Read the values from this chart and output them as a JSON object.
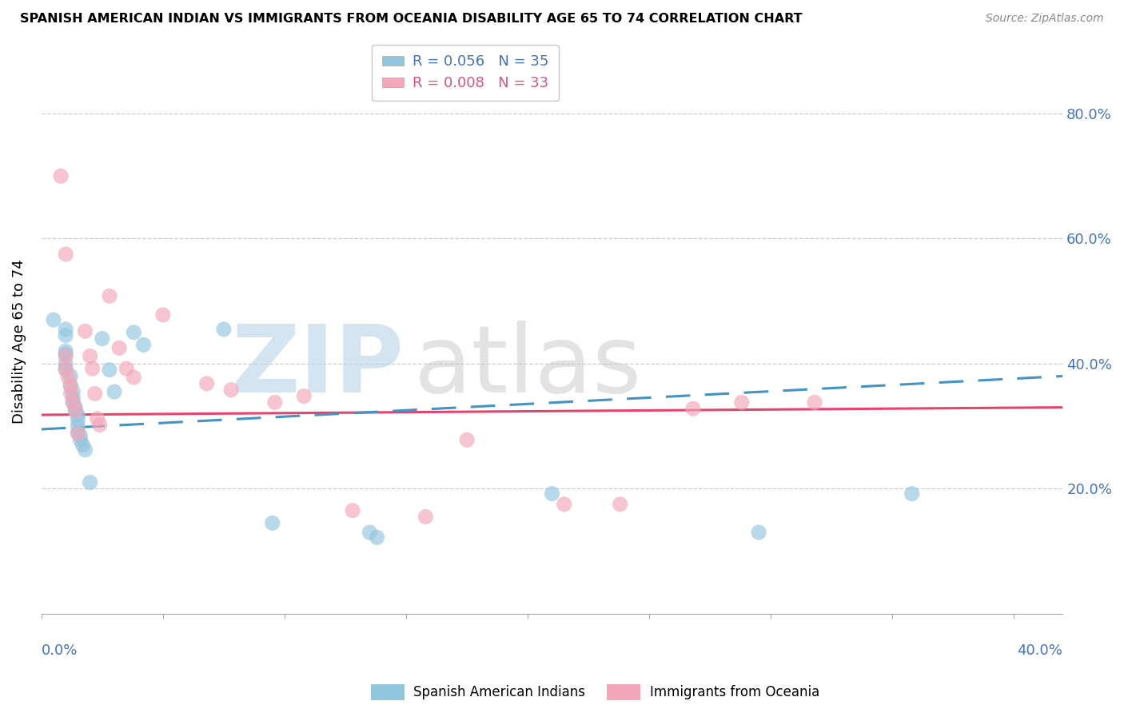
{
  "title": "SPANISH AMERICAN INDIAN VS IMMIGRANTS FROM OCEANIA DISABILITY AGE 65 TO 74 CORRELATION CHART",
  "source": "Source: ZipAtlas.com",
  "ylabel": "Disability Age 65 to 74",
  "ylim": [
    0.0,
    0.87
  ],
  "xlim": [
    0.0,
    0.42
  ],
  "legend1_R": "0.056",
  "legend1_N": "35",
  "legend2_R": "0.008",
  "legend2_N": "33",
  "color_blue": "#92c5de",
  "color_pink": "#f4a7b9",
  "color_blue_line": "#4393c3",
  "color_pink_line": "#e8436e",
  "scatter_blue": [
    [
      0.005,
      0.47
    ],
    [
      0.01,
      0.455
    ],
    [
      0.01,
      0.445
    ],
    [
      0.01,
      0.42
    ],
    [
      0.01,
      0.415
    ],
    [
      0.01,
      0.4
    ],
    [
      0.01,
      0.39
    ],
    [
      0.012,
      0.38
    ],
    [
      0.012,
      0.365
    ],
    [
      0.013,
      0.355
    ],
    [
      0.013,
      0.345
    ],
    [
      0.013,
      0.338
    ],
    [
      0.014,
      0.33
    ],
    [
      0.014,
      0.325
    ],
    [
      0.015,
      0.318
    ],
    [
      0.015,
      0.31
    ],
    [
      0.015,
      0.3
    ],
    [
      0.015,
      0.29
    ],
    [
      0.016,
      0.285
    ],
    [
      0.016,
      0.278
    ],
    [
      0.017,
      0.27
    ],
    [
      0.018,
      0.262
    ],
    [
      0.02,
      0.21
    ],
    [
      0.025,
      0.44
    ],
    [
      0.028,
      0.39
    ],
    [
      0.03,
      0.355
    ],
    [
      0.038,
      0.45
    ],
    [
      0.042,
      0.43
    ],
    [
      0.075,
      0.455
    ],
    [
      0.095,
      0.145
    ],
    [
      0.135,
      0.13
    ],
    [
      0.138,
      0.122
    ],
    [
      0.21,
      0.192
    ],
    [
      0.295,
      0.13
    ],
    [
      0.358,
      0.192
    ]
  ],
  "scatter_pink": [
    [
      0.008,
      0.7
    ],
    [
      0.01,
      0.575
    ],
    [
      0.01,
      0.412
    ],
    [
      0.01,
      0.392
    ],
    [
      0.011,
      0.378
    ],
    [
      0.012,
      0.365
    ],
    [
      0.012,
      0.352
    ],
    [
      0.013,
      0.338
    ],
    [
      0.014,
      0.325
    ],
    [
      0.015,
      0.288
    ],
    [
      0.018,
      0.452
    ],
    [
      0.02,
      0.412
    ],
    [
      0.021,
      0.392
    ],
    [
      0.022,
      0.352
    ],
    [
      0.023,
      0.312
    ],
    [
      0.024,
      0.302
    ],
    [
      0.028,
      0.508
    ],
    [
      0.032,
      0.425
    ],
    [
      0.035,
      0.392
    ],
    [
      0.038,
      0.378
    ],
    [
      0.05,
      0.478
    ],
    [
      0.068,
      0.368
    ],
    [
      0.078,
      0.358
    ],
    [
      0.096,
      0.338
    ],
    [
      0.108,
      0.348
    ],
    [
      0.128,
      0.165
    ],
    [
      0.158,
      0.155
    ],
    [
      0.175,
      0.278
    ],
    [
      0.215,
      0.175
    ],
    [
      0.238,
      0.175
    ],
    [
      0.268,
      0.328
    ],
    [
      0.288,
      0.338
    ],
    [
      0.318,
      0.338
    ]
  ],
  "blue_line_y0": 0.295,
  "blue_line_y1": 0.38,
  "pink_line_y0": 0.318,
  "pink_line_y1": 0.33
}
